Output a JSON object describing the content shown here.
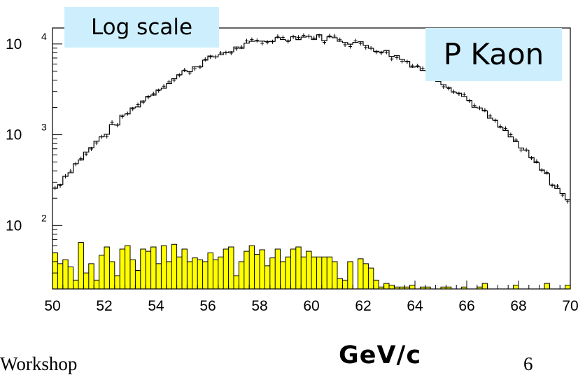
{
  "chart_data": {
    "type": "histogram",
    "x_range": [
      50,
      70
    ],
    "y_scale": "log",
    "y_range": [
      20,
      15000
    ],
    "x_ticks": [
      50,
      52,
      54,
      56,
      58,
      60,
      62,
      64,
      66,
      68,
      70
    ],
    "y_tick_labels": [
      {
        "value": 100,
        "base": "10",
        "exp": "2"
      },
      {
        "value": 1000,
        "base": "10",
        "exp": "3"
      },
      {
        "value": 10000,
        "base": "10",
        "exp": "4"
      }
    ],
    "xunit": "GeV/c",
    "annotations": [
      "Log scale",
      "P Kaon"
    ],
    "main_distribution": {
      "style": "step histogram (black) with crosses",
      "shape": "gaussian",
      "peak_value": 12000,
      "peak_x": 59.8,
      "sigma": 3.5,
      "bin_width": 0.2
    },
    "background_histogram": {
      "style": "yellow filled histogram",
      "bin_width": 0.2,
      "bins": [
        {
          "x": 50.0,
          "y": 50
        },
        {
          "x": 50.2,
          "y": 38
        },
        {
          "x": 50.4,
          "y": 42
        },
        {
          "x": 50.6,
          "y": 35
        },
        {
          "x": 50.8,
          "y": 25
        },
        {
          "x": 51.0,
          "y": 65
        },
        {
          "x": 51.2,
          "y": 30
        },
        {
          "x": 51.4,
          "y": 38
        },
        {
          "x": 51.6,
          "y": 25
        },
        {
          "x": 51.8,
          "y": 47
        },
        {
          "x": 52.0,
          "y": 58
        },
        {
          "x": 52.2,
          "y": 40
        },
        {
          "x": 52.4,
          "y": 28
        },
        {
          "x": 52.6,
          "y": 55
        },
        {
          "x": 52.8,
          "y": 60
        },
        {
          "x": 53.0,
          "y": 42
        },
        {
          "x": 53.2,
          "y": 32
        },
        {
          "x": 53.4,
          "y": 55
        },
        {
          "x": 53.6,
          "y": 52
        },
        {
          "x": 53.8,
          "y": 58
        },
        {
          "x": 54.0,
          "y": 38
        },
        {
          "x": 54.2,
          "y": 60
        },
        {
          "x": 54.4,
          "y": 40
        },
        {
          "x": 54.6,
          "y": 62
        },
        {
          "x": 54.8,
          "y": 45
        },
        {
          "x": 55.0,
          "y": 55
        },
        {
          "x": 55.2,
          "y": 40
        },
        {
          "x": 55.4,
          "y": 44
        },
        {
          "x": 55.6,
          "y": 42
        },
        {
          "x": 55.8,
          "y": 40
        },
        {
          "x": 56.0,
          "y": 50
        },
        {
          "x": 56.2,
          "y": 42
        },
        {
          "x": 56.4,
          "y": 45
        },
        {
          "x": 56.6,
          "y": 55
        },
        {
          "x": 56.8,
          "y": 58
        },
        {
          "x": 57.0,
          "y": 28
        },
        {
          "x": 57.2,
          "y": 40
        },
        {
          "x": 57.4,
          "y": 52
        },
        {
          "x": 57.6,
          "y": 60
        },
        {
          "x": 57.8,
          "y": 48
        },
        {
          "x": 58.0,
          "y": 54
        },
        {
          "x": 58.2,
          "y": 36
        },
        {
          "x": 58.4,
          "y": 44
        },
        {
          "x": 58.6,
          "y": 55
        },
        {
          "x": 58.8,
          "y": 40
        },
        {
          "x": 59.0,
          "y": 45
        },
        {
          "x": 59.2,
          "y": 55
        },
        {
          "x": 59.4,
          "y": 58
        },
        {
          "x": 59.6,
          "y": 45
        },
        {
          "x": 59.8,
          "y": 52
        },
        {
          "x": 60.0,
          "y": 45
        },
        {
          "x": 60.2,
          "y": 45
        },
        {
          "x": 60.4,
          "y": 45
        },
        {
          "x": 60.6,
          "y": 45
        },
        {
          "x": 60.8,
          "y": 40
        },
        {
          "x": 61.0,
          "y": 26
        },
        {
          "x": 61.2,
          "y": 25
        },
        {
          "x": 61.4,
          "y": 40
        },
        {
          "x": 61.6,
          "y": 20
        },
        {
          "x": 61.8,
          "y": 43
        },
        {
          "x": 62.0,
          "y": 38
        },
        {
          "x": 62.2,
          "y": 34
        },
        {
          "x": 62.4,
          "y": 25
        },
        {
          "x": 62.6,
          "y": 21
        },
        {
          "x": 62.8,
          "y": 23
        },
        {
          "x": 63.0,
          "y": 22
        },
        {
          "x": 63.2,
          "y": 21
        },
        {
          "x": 63.4,
          "y": 21
        },
        {
          "x": 63.6,
          "y": 21
        },
        {
          "x": 63.8,
          "y": 22
        },
        {
          "x": 64.2,
          "y": 21
        },
        {
          "x": 64.4,
          "y": 21
        },
        {
          "x": 65.0,
          "y": 21
        },
        {
          "x": 65.2,
          "y": 21
        },
        {
          "x": 65.8,
          "y": 21
        },
        {
          "x": 66.4,
          "y": 21
        },
        {
          "x": 66.6,
          "y": 23
        },
        {
          "x": 67.8,
          "y": 22
        },
        {
          "x": 69.0,
          "y": 23
        },
        {
          "x": 69.8,
          "y": 22
        }
      ]
    }
  },
  "callouts": {
    "log_scale": "Log scale",
    "p_kaon": "P Kaon"
  },
  "xunit_label": "GeV/c",
  "footer": {
    "left": "Workshop",
    "right": "6"
  },
  "colors": {
    "background_fill": "#ffff00",
    "callout": "#cdeffd",
    "line": "#000000"
  }
}
